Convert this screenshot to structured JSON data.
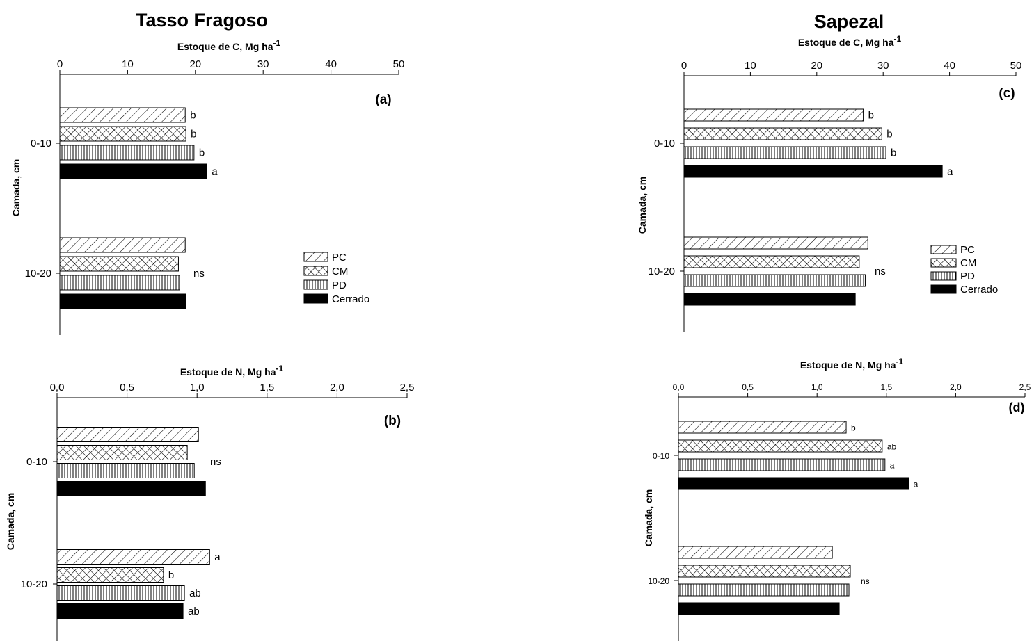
{
  "titles": {
    "left": "Tasso Fragoso",
    "right": "Sapezal"
  },
  "legend": {
    "PC": "PC",
    "CM": "CM",
    "PD": "PD",
    "Cerrado": "Cerrado"
  },
  "chart_data": [
    {
      "panel": "(a)",
      "type": "bar",
      "orientation": "horizontal",
      "site": "Tasso Fragoso",
      "xlabel": "Estoque de C, Mg ha",
      "xlabel_sup": "-1",
      "ylabel": "Camada, cm",
      "categories": [
        "0-10",
        "10-20"
      ],
      "xlim": [
        0,
        50
      ],
      "xticks": [
        "0",
        "10",
        "20",
        "30",
        "40",
        "50"
      ],
      "series": [
        {
          "name": "PC",
          "values": [
            18.5,
            18.5
          ]
        },
        {
          "name": "CM",
          "values": [
            18.6,
            17.5
          ]
        },
        {
          "name": "PD",
          "values": [
            19.8,
            17.7
          ]
        },
        {
          "name": "Cerrado",
          "values": [
            21.7,
            18.6
          ]
        }
      ],
      "group_labels": [
        null,
        "ns"
      ],
      "labels": [
        [
          "b",
          "b",
          "b",
          "a"
        ],
        [
          null,
          null,
          null,
          null
        ]
      ],
      "legend_position": "right"
    },
    {
      "panel": "(b)",
      "type": "bar",
      "orientation": "horizontal",
      "site": "Tasso Fragoso",
      "xlabel": "Estoque de N, Mg ha",
      "xlabel_sup": "-1",
      "ylabel": "Camada, cm",
      "categories": [
        "0-10",
        "10-20"
      ],
      "xlim": [
        0,
        2.5
      ],
      "xticks": [
        "0,0",
        "0,5",
        "1,0",
        "1,5",
        "2,0",
        "2,5"
      ],
      "series": [
        {
          "name": "PC",
          "values": [
            1.01,
            1.09
          ]
        },
        {
          "name": "CM",
          "values": [
            0.93,
            0.76
          ]
        },
        {
          "name": "PD",
          "values": [
            0.98,
            0.91
          ]
        },
        {
          "name": "Cerrado",
          "values": [
            1.06,
            0.9
          ]
        }
      ],
      "group_labels": [
        "ns",
        null
      ],
      "labels": [
        [
          null,
          null,
          null,
          null
        ],
        [
          "a",
          "b",
          "ab",
          "ab"
        ]
      ]
    },
    {
      "panel": "(c)",
      "type": "bar",
      "orientation": "horizontal",
      "site": "Sapezal",
      "xlabel": "Estoque de C, Mg ha",
      "xlabel_sup": "-1",
      "ylabel": "Camada, cm",
      "categories": [
        "0-10",
        "10-20"
      ],
      "xlim": [
        0,
        50
      ],
      "xticks": [
        "0",
        "10",
        "20",
        "30",
        "40",
        "50"
      ],
      "series": [
        {
          "name": "PC",
          "values": [
            27.0,
            27.7
          ]
        },
        {
          "name": "CM",
          "values": [
            29.8,
            26.4
          ]
        },
        {
          "name": "PD",
          "values": [
            30.4,
            27.3
          ]
        },
        {
          "name": "Cerrado",
          "values": [
            38.9,
            25.8
          ]
        }
      ],
      "group_labels": [
        null,
        "ns"
      ],
      "labels": [
        [
          "b",
          "b",
          "b",
          "a"
        ],
        [
          null,
          null,
          null,
          null
        ]
      ],
      "legend_position": "right"
    },
    {
      "panel": "(d)",
      "type": "bar",
      "orientation": "horizontal",
      "site": "Sapezal",
      "xlabel": "Estoque de N, Mg ha",
      "xlabel_sup": "-1",
      "ylabel": "Camada, cm",
      "categories": [
        "0-10",
        "10-20"
      ],
      "xlim": [
        0,
        2.5
      ],
      "xticks": [
        "0,0",
        "0,5",
        "1,0",
        "1,5",
        "2,0",
        "2,5"
      ],
      "series": [
        {
          "name": "PC",
          "values": [
            1.21,
            1.11
          ]
        },
        {
          "name": "CM",
          "values": [
            1.47,
            1.24
          ]
        },
        {
          "name": "PD",
          "values": [
            1.49,
            1.23
          ]
        },
        {
          "name": "Cerrado",
          "values": [
            1.66,
            1.16
          ]
        }
      ],
      "group_labels": [
        null,
        "ns"
      ],
      "labels": [
        [
          "b",
          "ab",
          "a",
          "a"
        ],
        [
          null,
          null,
          null,
          null
        ]
      ]
    }
  ]
}
